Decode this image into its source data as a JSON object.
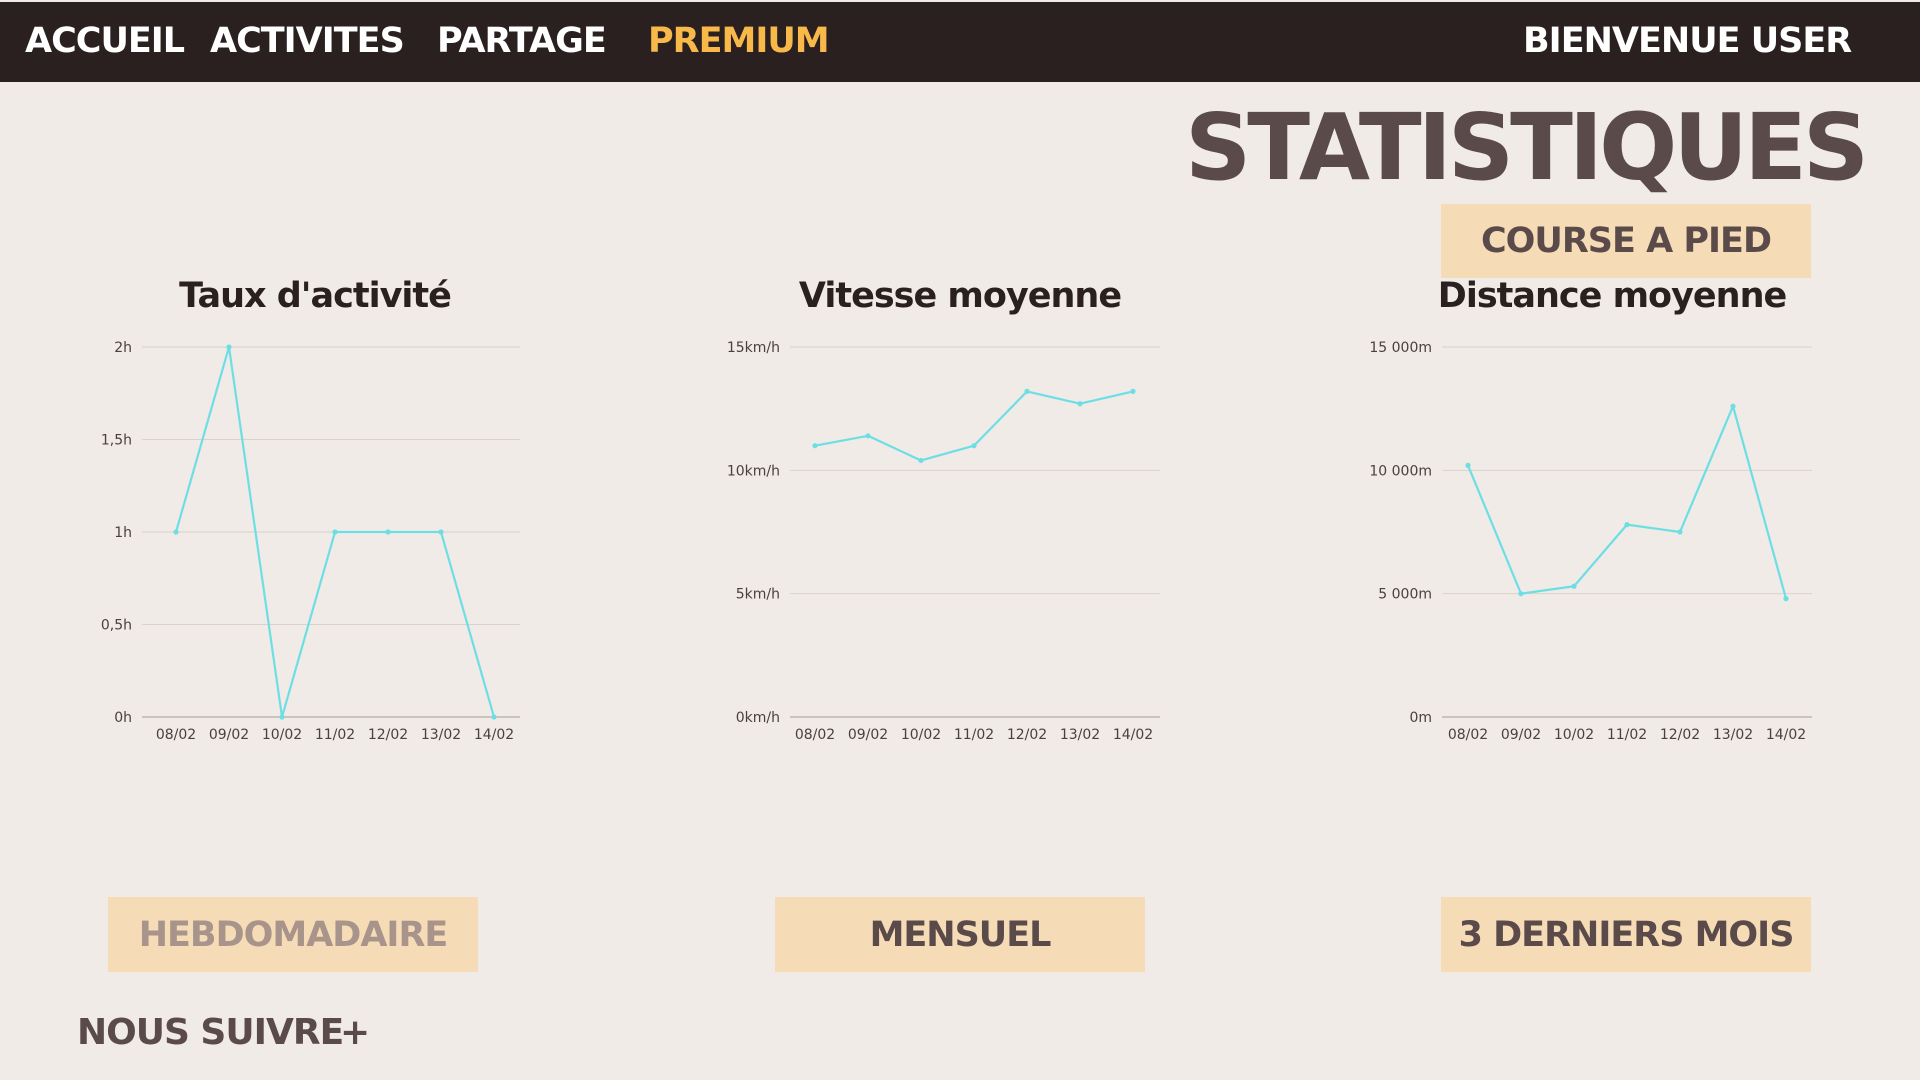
{
  "nav": {
    "items": [
      "ACCUEIL",
      "ACTIVITES",
      "PARTAGE",
      "PREMIUM"
    ],
    "welcome": "BIENVENUE USER"
  },
  "page_title": "STATISTIQUES",
  "activity_filter": "COURSE A PIED",
  "periods": [
    "HEBDOMADAIRE",
    "MENSUEL",
    "3 DERNIERS MOIS"
  ],
  "follow": {
    "label": "NOUS SUIVRE",
    "plus": "+"
  },
  "colors": {
    "nav_bg": "#2a2020",
    "premium": "#f9b94a",
    "page_bg": "#f0ebe6",
    "button_bg": "#f5dbb6",
    "line": "#6ddfe4",
    "title_text": "#5a4a4a"
  },
  "chart_data": [
    {
      "type": "line",
      "title": "Taux d'activité",
      "x": [
        "08/02",
        "09/02",
        "10/02",
        "11/02",
        "12/02",
        "13/02",
        "14/02"
      ],
      "series": [
        {
          "values": [
            1,
            2,
            0,
            1,
            1,
            1,
            0
          ]
        }
      ],
      "ylim": [
        0,
        2
      ],
      "yticks": [
        0,
        0.5,
        1,
        1.5,
        2
      ],
      "ytick_labels": [
        "0h",
        "0,5h",
        "1h",
        "1,5h",
        "2h"
      ],
      "grid": true
    },
    {
      "type": "line",
      "title": "Vitesse moyenne",
      "x": [
        "08/02",
        "09/02",
        "10/02",
        "11/02",
        "12/02",
        "13/02",
        "14/02"
      ],
      "series": [
        {
          "values": [
            11,
            11.4,
            10.4,
            11,
            13.2,
            12.7,
            13.2
          ]
        }
      ],
      "ylim": [
        0,
        15
      ],
      "yticks": [
        0,
        5,
        10,
        15
      ],
      "ytick_labels": [
        "0km/h",
        "5km/h",
        "10km/h",
        "15km/h"
      ],
      "grid": true
    },
    {
      "type": "line",
      "title": "Distance moyenne",
      "x": [
        "08/02",
        "09/02",
        "10/02",
        "11/02",
        "12/02",
        "13/02",
        "14/02"
      ],
      "series": [
        {
          "values": [
            10200,
            5000,
            5300,
            7800,
            7500,
            12600,
            4800
          ]
        }
      ],
      "ylim": [
        0,
        15000
      ],
      "yticks": [
        0,
        5000,
        10000,
        15000
      ],
      "ytick_labels": [
        "0m",
        "5 000m",
        "10 000m",
        "15 000m"
      ],
      "grid": true
    }
  ]
}
